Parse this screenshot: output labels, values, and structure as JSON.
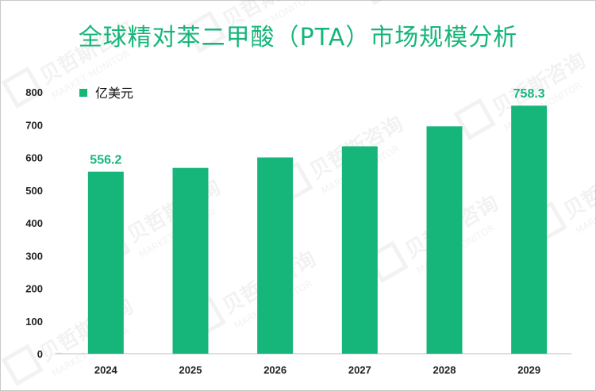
{
  "title": "全球精对苯二甲酸（PTA）市场规模分析",
  "watermark": {
    "brand_cn": "贝哲斯咨询",
    "brand_en": "MARKET MONITOR"
  },
  "colors": {
    "bar": "#16b67a",
    "title": "#16b67a",
    "label": "#16b67a"
  },
  "chart_data": {
    "type": "bar",
    "title": "全球精对苯二甲酸（PTA）市场规模分析",
    "categories": [
      "2024",
      "2025",
      "2026",
      "2027",
      "2028",
      "2029"
    ],
    "series": [
      {
        "name": "亿美元",
        "values": [
          556.2,
          568,
          600,
          634,
          695,
          758.3
        ]
      }
    ],
    "data_labels": [
      {
        "index": 0,
        "text": "556.2"
      },
      {
        "index": 5,
        "text": "758.3"
      }
    ],
    "ylim": [
      0,
      800
    ],
    "yticks": [
      0,
      100,
      200,
      300,
      400,
      500,
      600,
      700,
      800
    ],
    "legend": "top-left",
    "grid": false
  }
}
